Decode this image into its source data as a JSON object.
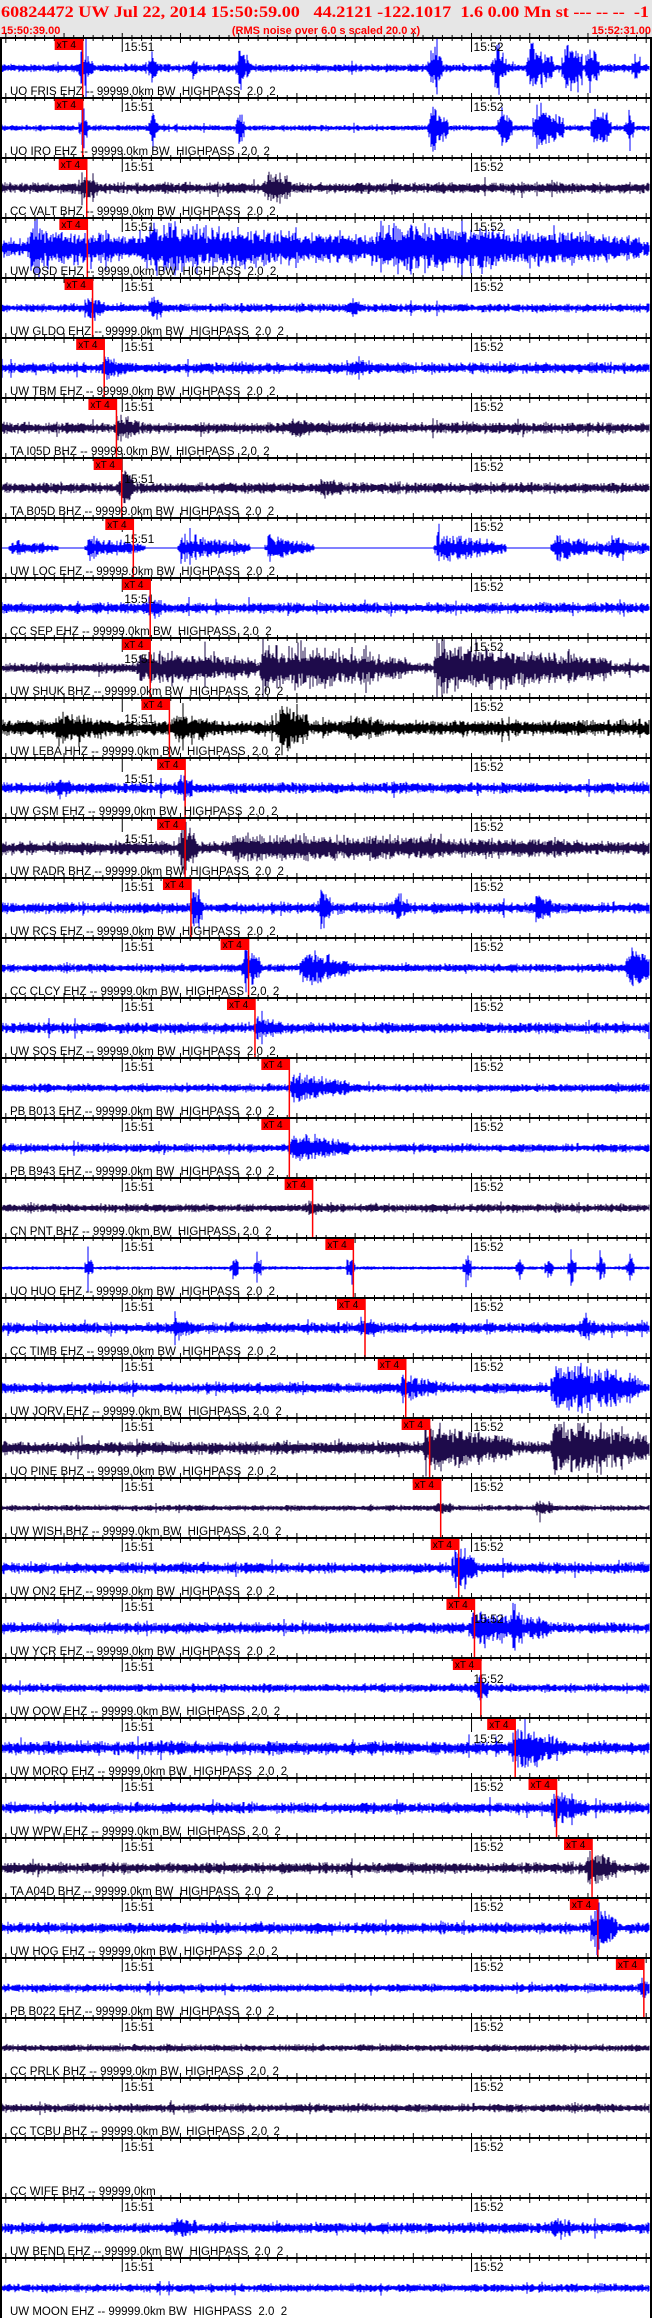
{
  "header": {
    "title": "60824472 UW Jul 22, 2014 15:50:59.00   44.2121 -122.1017  1.6 0.00 Mn st --- -- --  -1",
    "start_time": "15:50:39.00",
    "note": "(RMS noise over 6.0 s scaled 20.0 x)",
    "end_time": "15:52:31.00"
  },
  "colors": {
    "header_bg": "#e6e6e6",
    "header_text": "#ff0000",
    "pick": "#ff0000",
    "EHZ": "#0000ff",
    "BHZ": "#1e0b4b",
    "HHZ": "#000000"
  },
  "chart_data": {
    "type": "line",
    "x_range": [
      "15:50:39.00",
      "15:52:31.00"
    ],
    "tick_labels": [
      "15:51",
      "15:52"
    ],
    "pick_label": "xT 4",
    "traces": [
      {
        "label": "UO FRIS EHZ -- 99999.0km BW  HIGHPASS  2.0  2",
        "channel": "EHZ",
        "pick": "15:50:53.2"
      },
      {
        "label": "UO IRO EHZ -- 99999.0km BW  HIGHPASS  2.0  2",
        "channel": "EHZ",
        "pick": "15:50:53.2"
      },
      {
        "label": "CC VALT BHZ -- 99999.0km BW  HIGHPASS  2.0  2",
        "channel": "BHZ",
        "pick": "15:50:53.9"
      },
      {
        "label": "UW OSD EHZ -- 99999.0km BW  HIGHPASS  2.0  2",
        "channel": "EHZ",
        "pick": "15:50:54.0"
      },
      {
        "label": "UW GLDO EHZ -- 99999.0km BW  HIGHPASS  2.0  2",
        "channel": "EHZ",
        "pick": "15:50:54.9"
      },
      {
        "label": "UW TBM EHZ -- 99999.0km BW  HIGHPASS  2.0  2",
        "channel": "EHZ",
        "pick": "15:50:56.9"
      },
      {
        "label": "TA I05D BHZ -- 99999.0km BW  HIGHPASS  2.0  2",
        "channel": "BHZ",
        "pick": "15:50:59.0"
      },
      {
        "label": "TA B05D BHZ -- 99999.0km BW  HIGHPASS  2.0  2",
        "channel": "BHZ",
        "pick": "15:50:59.9"
      },
      {
        "label": "UW LOC EHZ -- 99999.0km BW  HIGHPASS  2.0  2",
        "channel": "EHZ",
        "pick": "15:51:01.9"
      },
      {
        "label": "CC SEP EHZ -- 99999.0km BW  HIGHPASS  2.0  2",
        "channel": "EHZ",
        "pick": "15:51:04.8"
      },
      {
        "label": "UW SHUK BHZ -- 99999.0km BW  HIGHPASS  2.0  2",
        "channel": "BHZ",
        "pick": "15:51:04.8"
      },
      {
        "label": "UW LEBA HHZ -- 99999.0km BW  HIGHPASS  2.0  2",
        "channel": "HHZ",
        "pick": "15:51:08.1"
      },
      {
        "label": "UW GSM EHZ -- 99999.0km BW  HIGHPASS  2.0  2",
        "channel": "EHZ",
        "pick": "15:51:10.8"
      },
      {
        "label": "UW RADR BHZ -- 99999.0km BW  HIGHPASS  2.0  2",
        "channel": "BHZ",
        "pick": "15:51:10.8"
      },
      {
        "label": "UW RCS EHZ -- 99999.0km BW  HIGHPASS  2.0  2",
        "channel": "EHZ",
        "pick": "15:51:11.8"
      },
      {
        "label": "CC CLCY EHZ -- 99999.0km BW  HIGHPASS  2.0  2",
        "channel": "EHZ",
        "pick": "15:51:21.7"
      },
      {
        "label": "UW SOS EHZ -- 99999.0km BW  HIGHPASS  2.0  2",
        "channel": "EHZ",
        "pick": "15:51:22.8"
      },
      {
        "label": "PB B013 EHZ -- 99999.0km BW  HIGHPASS  2.0  2",
        "channel": "EHZ",
        "pick": "15:51:28.7"
      },
      {
        "label": "PB B943 EHZ -- 99999.0km BW  HIGHPASS  2.0  2",
        "channel": "EHZ",
        "pick": "15:51:28.7"
      },
      {
        "label": "CN PNT BHZ -- 99999.0km BW  HIGHPASS  2.0  2",
        "channel": "BHZ",
        "pick": "15:51:32.7"
      },
      {
        "label": "UO HUO EHZ -- 99999.0km BW  HIGHPASS  2.0  2",
        "channel": "EHZ",
        "pick": "15:51:39.7"
      },
      {
        "label": "CC TIMB EHZ -- 99999.0km BW  HIGHPASS  2.0  2",
        "channel": "EHZ",
        "pick": "15:51:41.7"
      },
      {
        "label": "UW JORV EHZ -- 99999.0km BW  HIGHPASS  2.0  2",
        "channel": "EHZ",
        "pick": "15:51:48.7"
      },
      {
        "label": "UO PINE BHZ -- 99999.0km BW  HIGHPASS  2.0  2",
        "channel": "BHZ",
        "pick": "15:51:52.8"
      },
      {
        "label": "UW WISH BHZ -- 99999.0km BW  HIGHPASS  2.0  2",
        "channel": "BHZ",
        "pick": "15:51:54.7"
      },
      {
        "label": "UW ON2 EHZ -- 99999.0km BW  HIGHPASS  2.0  2",
        "channel": "EHZ",
        "pick": "15:51:57.8"
      },
      {
        "label": "UW YCR EHZ -- 99999.0km BW  HIGHPASS  2.0  2",
        "channel": "EHZ",
        "pick": "15:52:00.5"
      },
      {
        "label": "UW OOW EHZ -- 99999.0km BW  HIGHPASS  2.0  2",
        "channel": "EHZ",
        "pick": "15:52:01.6"
      },
      {
        "label": "UW MORO EHZ -- 99999.0km BW  HIGHPASS  2.0  2",
        "channel": "EHZ",
        "pick": "15:52:07.5"
      },
      {
        "label": "UW WPW EHZ -- 99999.0km BW  HIGHPASS  2.0  2",
        "channel": "EHZ",
        "pick": "15:52:14.6"
      },
      {
        "label": "TA A04D BHZ -- 99999.0km BW  HIGHPASS  2.0  2",
        "channel": "BHZ",
        "pick": "15:52:20.7"
      },
      {
        "label": "UW HOG EHZ -- 99999.0km BW  HIGHPASS  2.0  2",
        "channel": "EHZ",
        "pick": "15:52:21.7"
      },
      {
        "label": "PB B022 EHZ -- 99999.0km BW  HIGHPASS  2.0  2",
        "channel": "EHZ",
        "pick": "15:52:29.6"
      },
      {
        "label": "CC PRLK BHZ -- 99999.0km BW  HIGHPASS  2.0  2",
        "channel": "BHZ",
        "pick": null
      },
      {
        "label": "CC TCBU BHZ -- 99999.0km BW  HIGHPASS  2.0  2",
        "channel": "BHZ",
        "pick": null
      },
      {
        "label": "CC WIFE BHZ -- 99999.0km",
        "channel": "BHZ",
        "pick": null
      },
      {
        "label": "UW BEND EHZ -- 99999.0km BW  HIGHPASS  2.0  2",
        "channel": "EHZ",
        "pick": null
      },
      {
        "label": "UW MOON EHZ -- 99999.0km BW  HIGHPASS  2.0  2",
        "channel": "EHZ",
        "pick": null
      }
    ]
  }
}
